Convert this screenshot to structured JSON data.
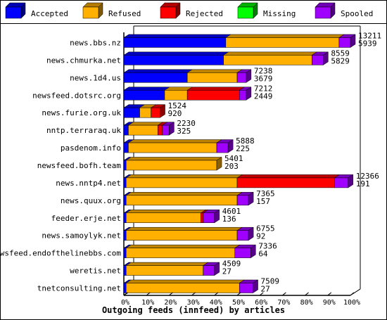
{
  "chart_data": {
    "type": "bar",
    "stacked": true,
    "orientation": "horizontal",
    "title": "",
    "xlabel": "Outgoing feeds (innfeed) by articles",
    "ylabel": "",
    "xlim": [
      0,
      100
    ],
    "x_tick_labels": [
      "0%",
      "10%",
      "20%",
      "30%",
      "40%",
      "50%",
      "60%",
      "70%",
      "80%",
      "90%",
      "100%"
    ],
    "legend_position": "top",
    "series": [
      {
        "name": "Accepted",
        "color": "#0000ff",
        "values": [
          45,
          44,
          28,
          18,
          7,
          2,
          2,
          1,
          1,
          1,
          1,
          1,
          1,
          1,
          1
        ]
      },
      {
        "name": "Refused",
        "color": "#ffb000",
        "values": [
          50,
          39,
          22,
          10,
          5,
          13,
          39,
          40,
          49,
          49,
          33,
          49,
          48,
          34,
          50
        ]
      },
      {
        "name": "Rejected",
        "color": "#ff0000",
        "values": [
          0,
          0,
          0,
          23,
          4,
          2,
          0,
          0,
          43,
          0,
          1,
          0,
          0,
          0,
          0
        ]
      },
      {
        "name": "Missing",
        "color": "#00ff00",
        "values": [
          0,
          0,
          0,
          0,
          0,
          0,
          0,
          0,
          0,
          0,
          0,
          0,
          0,
          0,
          0
        ]
      },
      {
        "name": "Spooled",
        "color": "#a000ff",
        "values": [
          5,
          5,
          4,
          3,
          0,
          3,
          5,
          0,
          6,
          5,
          5,
          5,
          7,
          5,
          6
        ]
      }
    ],
    "categories": [
      {
        "name": "news.bbs.nz",
        "total": "13211",
        "accepted": "5939"
      },
      {
        "name": "news.chmurka.net",
        "total": "8559",
        "accepted": "5829"
      },
      {
        "name": "news.1d4.us",
        "total": "7238",
        "accepted": "3679"
      },
      {
        "name": "newsfeed.dotsrc.org",
        "total": "7212",
        "accepted": "2449"
      },
      {
        "name": "news.furie.org.uk",
        "total": "1524",
        "accepted": "920"
      },
      {
        "name": "nntp.terraraq.uk",
        "total": "2230",
        "accepted": "325"
      },
      {
        "name": "pasdenom.info",
        "total": "5888",
        "accepted": "225"
      },
      {
        "name": "newsfeed.bofh.team",
        "total": "5401",
        "accepted": "203"
      },
      {
        "name": "news.nntp4.net",
        "total": "12366",
        "accepted": "191"
      },
      {
        "name": "news.quux.org",
        "total": "7365",
        "accepted": "157"
      },
      {
        "name": "feeder.erje.net",
        "total": "4601",
        "accepted": "136"
      },
      {
        "name": "news.samoylyk.net",
        "total": "6755",
        "accepted": "92"
      },
      {
        "name": "newsfeed.endofthelinebbs.com",
        "total": "7336",
        "accepted": "64"
      },
      {
        "name": "weretis.net",
        "total": "4509",
        "accepted": "27"
      },
      {
        "name": "tnetconsulting.net",
        "total": "7509",
        "accepted": "27"
      }
    ]
  }
}
